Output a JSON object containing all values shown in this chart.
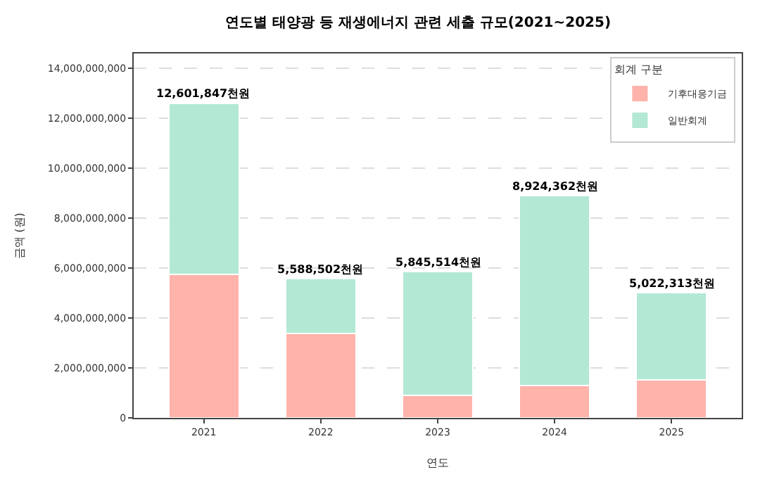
{
  "chart_data": {
    "type": "bar",
    "title": "연도별 태양광 등 재생에너지 관련 세출 규모(2021~2025)",
    "xlabel": "연도",
    "ylabel": "금액 (원)",
    "legend_title": "회계 구분",
    "categories": [
      "2021",
      "2022",
      "2023",
      "2024",
      "2025"
    ],
    "stacked": true,
    "series": [
      {
        "name": "기후대응기금",
        "color": "#ffb3ab",
        "values": [
          5740000000,
          3380000000,
          910000000,
          1310000000,
          1510000000
        ]
      },
      {
        "name": "일반회계",
        "color": "#b3e8d4",
        "values": [
          6860000000,
          2210000000,
          4940000000,
          7610000000,
          3510000000
        ]
      }
    ],
    "annotations": [
      {
        "text": "12,601,847천원",
        "x": "2021",
        "y": 12600000000
      },
      {
        "text": "5,588,502천원",
        "x": "2022",
        "y": 5590000000
      },
      {
        "text": "5,845,514천원",
        "x": "2023",
        "y": 5850000000
      },
      {
        "text": "8,924,362천원",
        "x": "2024",
        "y": 8920000000
      },
      {
        "text": "5,022,313천원",
        "x": "2025",
        "y": 5020000000
      }
    ],
    "ylim": [
      0,
      14600000000
    ],
    "yticks": [
      {
        "value": 0,
        "label": "0"
      },
      {
        "value": 2000000000,
        "label": "2,000,000,000"
      },
      {
        "value": 4000000000,
        "label": "4,000,000,000"
      },
      {
        "value": 6000000000,
        "label": "6,000,000,000"
      },
      {
        "value": 8000000000,
        "label": "8,000,000,000"
      },
      {
        "value": 10000000000,
        "label": "10,000,000,000"
      },
      {
        "value": 12000000000,
        "label": "12,000,000,000"
      },
      {
        "value": 14000000000,
        "label": "14,000,000,000"
      }
    ],
    "grid": "y",
    "legend": "top right"
  }
}
